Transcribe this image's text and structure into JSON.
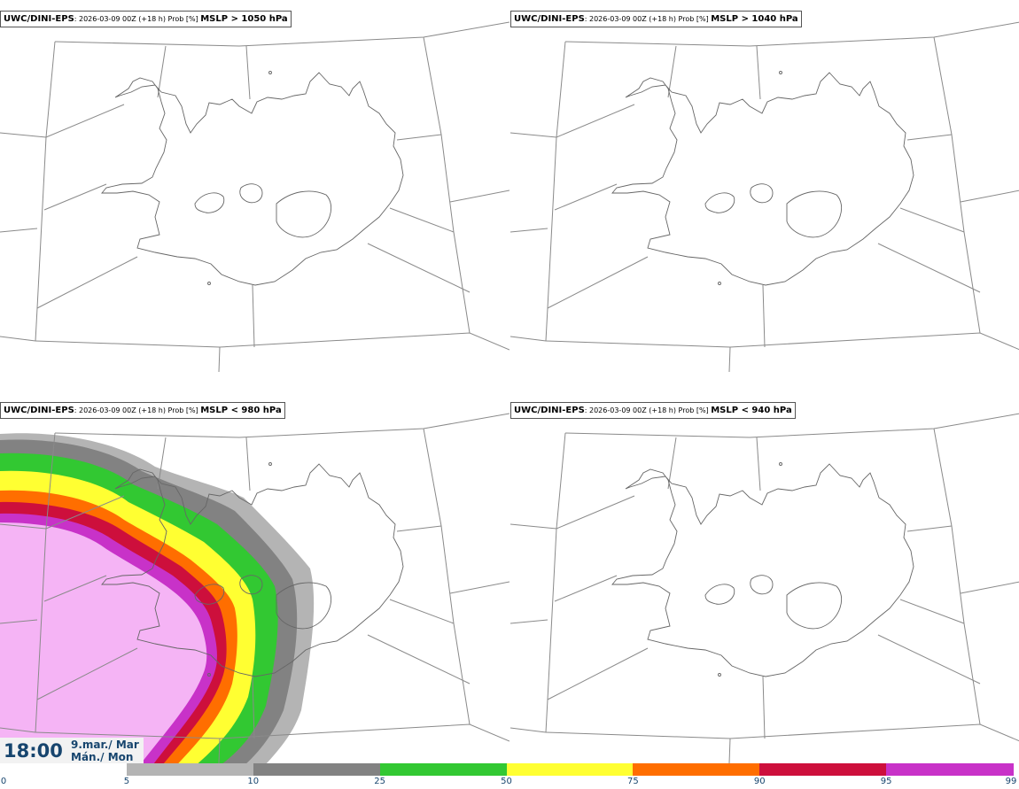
{
  "panels": [
    {
      "model": "UWC/DINI-EPS",
      "meta": ": 2026-03-09 00Z (+18 h) Prob [%]",
      "threshold": "MSLP > 1050 hPa"
    },
    {
      "model": "UWC/DINI-EPS",
      "meta": ": 2026-03-09 00Z (+18 h) Prob [%]",
      "threshold": "MSLP > 1040 hPa"
    },
    {
      "model": "UWC/DINI-EPS",
      "meta": ": 2026-03-09 00Z (+18 h) Prob [%]",
      "threshold": "MSLP < 980 hPa"
    },
    {
      "model": "UWC/DINI-EPS",
      "meta": ": 2026-03-09 00Z (+18 h) Prob [%]",
      "threshold": "MSLP < 940 hPa"
    }
  ],
  "time": {
    "hour": "18:00",
    "date": "9.mar./ Mar",
    "weekday": "Mán./ Mon"
  },
  "legend": {
    "ticks": [
      "0",
      "5",
      "10",
      "25",
      "50",
      "75",
      "90",
      "95",
      "99"
    ],
    "colors": [
      "#ffffff",
      "#b4b4b4",
      "#828282",
      "#32c832",
      "#ffff32",
      "#ff6e00",
      "#cd0f3c",
      "#c832c8",
      "#f5b4f5"
    ]
  }
}
